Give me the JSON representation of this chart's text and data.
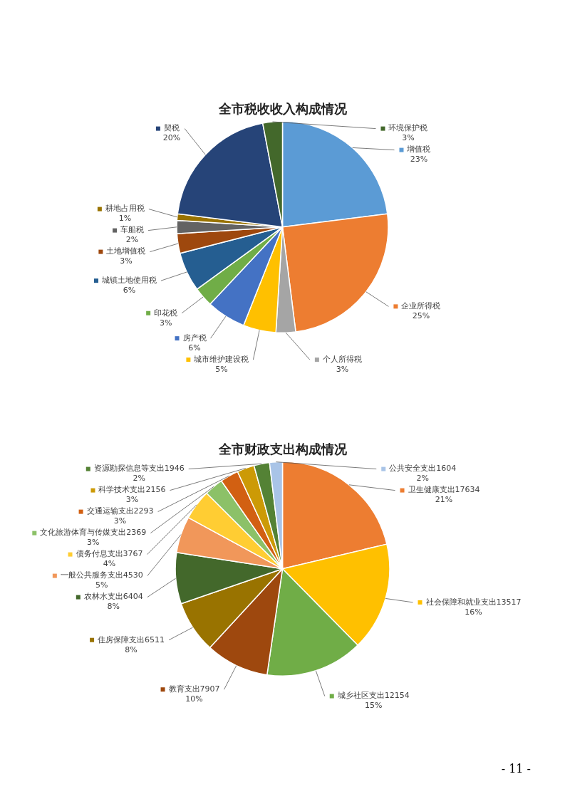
{
  "chart_data": [
    {
      "type": "pie",
      "title": "全市税收收入构成情况",
      "categories": [
        "增值税",
        "企业所得税",
        "个人所得税",
        "城市维护建设税",
        "房产税",
        "印花税",
        "城镇土地使用税",
        "土地增值税",
        "车船税",
        "耕地占用税",
        "契税",
        "环境保护税"
      ],
      "values": [
        23,
        25,
        3,
        5,
        6,
        3,
        6,
        3,
        2,
        1,
        20,
        3
      ],
      "value_labels": [
        "23%",
        "25%",
        "3%",
        "5%",
        "6%",
        "3%",
        "6%",
        "3%",
        "2%",
        "1%",
        "20%",
        "3%"
      ],
      "colors": [
        "#5b9bd5",
        "#ed7d31",
        "#a5a5a5",
        "#ffc000",
        "#4472c4",
        "#70ad47",
        "#255e91",
        "#9e480e",
        "#636363",
        "#997300",
        "#264478",
        "#43682b"
      ],
      "legend": true
    },
    {
      "type": "pie",
      "title": "全市财政支出构成情况",
      "categories": [
        "卫生健康支出",
        "社会保障和就业支出",
        "城乡社区支出",
        "教育支出",
        "住房保障支出",
        "农林水支出",
        "一般公共服务支出",
        "债务付息支出",
        "文化旅游体育与传媒支出",
        "交通运输支出",
        "科学技术支出",
        "资源勘探信息等支出",
        "公共安全支出"
      ],
      "values": [
        17634,
        13517,
        12154,
        7907,
        6511,
        6404,
        4530,
        3767,
        2369,
        2293,
        2156,
        1946,
        1604
      ],
      "value_labels": [
        "17634\n21%",
        "13517\n16%",
        "12154\n15%",
        "7907\n10%",
        "6511\n8%",
        "6404\n8%",
        "4530\n5%",
        "3767\n4%",
        "2369\n3%",
        "2293\n3%",
        "2156\n3%",
        "1946\n2%",
        "1604\n2%"
      ],
      "colors": [
        "#ed7d31",
        "#ffc000",
        "#70ad47",
        "#9e480e",
        "#997300",
        "#43682b",
        "#f1975a",
        "#ffcd33",
        "#8cc168",
        "#d26012",
        "#cc9a06",
        "#548235",
        "#a9c4e7"
      ],
      "legend": true,
      "annotations": [
        "- 11 -"
      ]
    }
  ]
}
